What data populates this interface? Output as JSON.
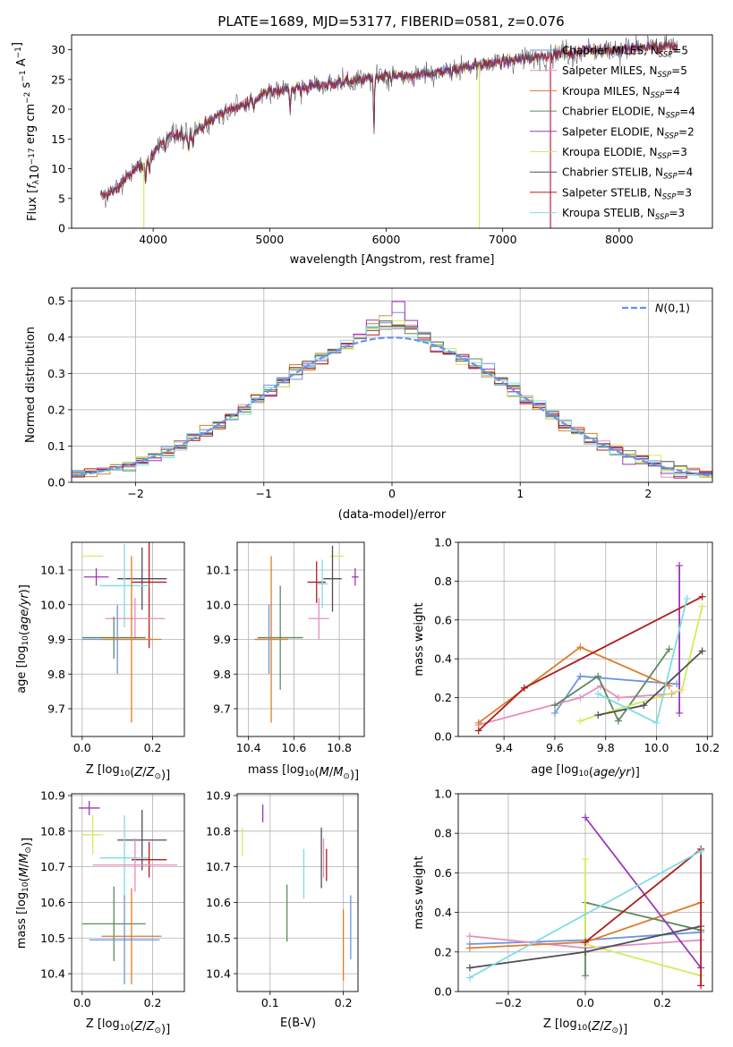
{
  "title": "PLATE=1689, MJD=53177, FIBERID=0581, z=0.076",
  "colors": {
    "Chabrier MILES": "#6e93e0",
    "Salpeter MILES": "#e48fbd",
    "Kroupa MILES": "#dd7d2a",
    "Chabrier ELODIE": "#5d8a5f",
    "Salpeter ELODIE": "#9a38b8",
    "Kroupa ELODIE": "#d2ec5c",
    "Chabrier STELIB": "#4e4e58",
    "Salpeter STELIB": "#b01d1d",
    "Kroupa STELIB": "#7fdde2",
    "normal": "#6495ed",
    "grid": "#b0b0b0"
  },
  "chart_data": [
    {
      "id": "spectrum",
      "type": "line",
      "title": "PLATE=1689, MJD=53177, FIBERID=0581, z=0.076",
      "xlabel": "wavelength [Angstrom, rest frame]",
      "ylabel": "Flux [f_λ 10^-17 erg cm^-2 s^-1 A^-1]",
      "xlim": [
        3300,
        8800
      ],
      "ylim": [
        0,
        32.5
      ],
      "xticks": [
        4000,
        5000,
        6000,
        7000,
        8000
      ],
      "yticks": [
        0,
        5,
        10,
        15,
        20,
        25,
        30
      ],
      "legend": {
        "placement": "right",
        "entries": [
          {
            "label": "Chabrier MILES, N_SSP=5",
            "prefix": "Chabrier MILES, N",
            "sub": "SSP",
            "suffix": "=5"
          },
          {
            "label": "Salpeter MILES, N_SSP=5",
            "prefix": "Salpeter MILES, N",
            "sub": "SSP",
            "suffix": "=5"
          },
          {
            "label": "Kroupa MILES, N_SSP=4",
            "prefix": "Kroupa MILES, N",
            "sub": "SSP",
            "suffix": "=4"
          },
          {
            "label": "Chabrier ELODIE, N_SSP=4",
            "prefix": "Chabrier ELODIE, N",
            "sub": "SSP",
            "suffix": "=4"
          },
          {
            "label": "Salpeter ELODIE, N_SSP=2",
            "prefix": "Salpeter ELODIE, N",
            "sub": "SSP",
            "suffix": "=2"
          },
          {
            "label": "Kroupa ELODIE, N_SSP=3",
            "prefix": "Kroupa ELODIE, N",
            "sub": "SSP",
            "suffix": "=3"
          },
          {
            "label": "Chabrier STELIB, N_SSP=4",
            "prefix": "Chabrier STELIB, N",
            "sub": "SSP",
            "suffix": "=4"
          },
          {
            "label": "Salpeter STELIB, N_SSP=3",
            "prefix": "Salpeter STELIB, N",
            "sub": "SSP",
            "suffix": "=3"
          },
          {
            "label": "Kroupa STELIB, N_SSP=3",
            "prefix": "Kroupa STELIB, N",
            "sub": "SSP",
            "suffix": "=3"
          }
        ]
      },
      "continuum": [
        [
          3550,
          5.5
        ],
        [
          3650,
          6
        ],
        [
          3750,
          8
        ],
        [
          3850,
          10
        ],
        [
          3950,
          11
        ],
        [
          4050,
          14
        ],
        [
          4150,
          15.5
        ],
        [
          4300,
          15.5
        ],
        [
          4450,
          17.5
        ],
        [
          4600,
          19.5
        ],
        [
          4800,
          21
        ],
        [
          5000,
          23
        ],
        [
          5200,
          23.5
        ],
        [
          5400,
          24
        ],
        [
          5600,
          24.5
        ],
        [
          5800,
          25
        ],
        [
          6000,
          25.5
        ],
        [
          6200,
          25.5
        ],
        [
          6500,
          26.5
        ],
        [
          6800,
          27.5
        ],
        [
          7000,
          28
        ],
        [
          7200,
          28.5
        ],
        [
          7500,
          29.5
        ],
        [
          7800,
          30
        ],
        [
          8000,
          30
        ],
        [
          8300,
          30.5
        ],
        [
          8500,
          30.5
        ]
      ],
      "absorption": [
        [
          3934,
          2.5
        ],
        [
          3969,
          2.5
        ],
        [
          4102,
          2
        ],
        [
          4304,
          2.5
        ],
        [
          4340,
          2
        ],
        [
          4861,
          2
        ],
        [
          5175,
          4
        ],
        [
          5270,
          1.5
        ],
        [
          5895,
          9
        ],
        [
          6563,
          1.5
        ],
        [
          7600,
          1.5
        ]
      ],
      "spikes": [
        [
          6800,
          "Kroupa ELODIE"
        ],
        [
          7410,
          "Salpeter STELIB"
        ],
        [
          7405,
          "Salpeter MILES"
        ],
        [
          3920,
          "Kroupa ELODIE"
        ]
      ]
    },
    {
      "id": "residuals",
      "type": "bar",
      "xlabel": "(data-model)/error",
      "ylabel": "Normed distribution",
      "xlim": [
        -2.5,
        2.5
      ],
      "ylim": [
        0,
        0.535
      ],
      "xticks": [
        -2,
        -1,
        0,
        1,
        2
      ],
      "yticks": [
        0.0,
        0.1,
        0.2,
        0.3,
        0.4,
        0.5
      ],
      "bin_width": 0.1,
      "legend": {
        "label": "N(0,1)",
        "placement": "top-right"
      },
      "peaks": {
        "Chabrier MILES": 0.49,
        "Salpeter MILES": 0.45,
        "Kroupa MILES": 0.47,
        "Chabrier ELODIE": 0.44,
        "Salpeter ELODIE": 0.51,
        "Kroupa ELODIE": 0.47,
        "Chabrier STELIB": 0.46,
        "Salpeter STELIB": 0.45,
        "Kroupa STELIB": 0.44
      }
    },
    {
      "id": "age-vs-metal",
      "type": "scatter",
      "xlabel": "Z [log10(Z/Z☉)]",
      "ylabel": "age [log10(age/yr)]",
      "xlim": [
        -0.03,
        0.29
      ],
      "ylim": [
        9.62,
        10.18
      ],
      "xticks": [
        0.0,
        0.2
      ],
      "yticks": [
        9.7,
        9.8,
        9.9,
        10.0,
        10.1
      ],
      "points": [
        {
          "s": "Kroupa ELODIE",
          "x": 0.03,
          "y": 10.14,
          "xe": 0.03,
          "ye": 0.0
        },
        {
          "s": "Salpeter ELODIE",
          "x": 0.04,
          "y": 10.08,
          "xe": 0.035,
          "ye": 0.025
        },
        {
          "s": "Chabrier STELIB",
          "x": 0.17,
          "y": 10.075,
          "xe": 0.07,
          "ye": 0.09
        },
        {
          "s": "Salpeter STELIB",
          "x": 0.19,
          "y": 10.065,
          "xe": 0.05,
          "ye": 0.19
        },
        {
          "s": "Kroupa STELIB",
          "x": 0.12,
          "y": 10.055,
          "xe": 0.07,
          "ye": 0.12
        },
        {
          "s": "Salpeter MILES",
          "x": 0.15,
          "y": 9.96,
          "xe": 0.085,
          "ye": 0.06
        },
        {
          "s": "Chabrier ELODIE",
          "x": 0.09,
          "y": 9.905,
          "xe": 0.09,
          "ye": 0.06
        },
        {
          "s": "Chabrier MILES",
          "x": 0.1,
          "y": 9.9,
          "xe": 0.1,
          "ye": 0.1
        },
        {
          "s": "Kroupa MILES",
          "x": 0.14,
          "y": 9.9,
          "xe": 0.085,
          "ye": 0.24
        }
      ]
    },
    {
      "id": "age-vs-mass",
      "type": "scatter",
      "xlabel": "mass [log10(M/M☉)]",
      "ylabel": "",
      "xlim": [
        10.35,
        10.91
      ],
      "ylim": [
        9.62,
        10.18
      ],
      "xticks": [
        10.4,
        10.6,
        10.8
      ],
      "yticks": [
        9.7,
        9.8,
        9.9,
        10.0,
        10.1
      ],
      "points": [
        {
          "s": "Kroupa ELODIE",
          "x": 10.79,
          "y": 10.14,
          "xe": 0.03,
          "ye": 0.0
        },
        {
          "s": "Salpeter ELODIE",
          "x": 10.87,
          "y": 10.08,
          "xe": 0.015,
          "ye": 0.025
        },
        {
          "s": "Chabrier STELIB",
          "x": 10.77,
          "y": 10.075,
          "xe": 0.04,
          "ye": 0.095
        },
        {
          "s": "Salpeter STELIB",
          "x": 10.7,
          "y": 10.065,
          "xe": 0.04,
          "ye": 0.06
        },
        {
          "s": "Kroupa STELIB",
          "x": 10.725,
          "y": 10.06,
          "xe": 0.025,
          "ye": 0.07
        },
        {
          "s": "Salpeter MILES",
          "x": 10.71,
          "y": 9.96,
          "xe": 0.045,
          "ye": 0.06
        },
        {
          "s": "Chabrier ELODIE",
          "x": 10.54,
          "y": 9.905,
          "xe": 0.1,
          "ye": 0.15
        },
        {
          "s": "Chabrier MILES",
          "x": 10.49,
          "y": 9.9,
          "xe": 0.06,
          "ye": 0.1
        },
        {
          "s": "Kroupa MILES",
          "x": 10.5,
          "y": 9.9,
          "xe": 0.075,
          "ye": 0.24
        }
      ]
    },
    {
      "id": "mass-weight-vs-age",
      "type": "line",
      "xlabel": "age [log10(age/yr)]",
      "ylabel": "mass weight",
      "xlim": [
        9.22,
        10.22
      ],
      "ylim": [
        0,
        1
      ],
      "xticks": [
        9.4,
        9.6,
        9.8,
        10.0,
        10.2
      ],
      "yticks": [
        0.0,
        0.2,
        0.4,
        0.6,
        0.8,
        1.0
      ],
      "series": [
        {
          "s": "Chabrier MILES",
          "x": [
            9.6,
            9.7,
            10.08
          ],
          "y": [
            0.12,
            0.31,
            0.27
          ]
        },
        {
          "s": "Salpeter MILES",
          "x": [
            9.3,
            9.7,
            9.78,
            9.85,
            10.06
          ],
          "y": [
            0.06,
            0.2,
            0.26,
            0.2,
            0.22
          ]
        },
        {
          "s": "Kroupa MILES",
          "x": [
            9.3,
            9.7,
            10.05
          ],
          "y": [
            0.07,
            0.46,
            0.26
          ]
        },
        {
          "s": "Chabrier ELODIE",
          "x": [
            9.6,
            9.77,
            9.85,
            10.05
          ],
          "y": [
            0.16,
            0.31,
            0.08,
            0.45
          ]
        },
        {
          "s": "Salpeter ELODIE",
          "x": [
            10.09,
            10.09
          ],
          "y": [
            0.12,
            0.88
          ]
        },
        {
          "s": "Kroupa ELODIE",
          "x": [
            9.7,
            9.77,
            10.1,
            10.18
          ],
          "y": [
            0.08,
            0.11,
            0.24,
            0.67
          ]
        },
        {
          "s": "Chabrier STELIB",
          "x": [
            9.77,
            9.95,
            10.18
          ],
          "y": [
            0.11,
            0.16,
            0.44
          ]
        },
        {
          "s": "Salpeter STELIB",
          "x": [
            9.3,
            9.48,
            10.18
          ],
          "y": [
            0.03,
            0.25,
            0.72
          ]
        },
        {
          "s": "Kroupa STELIB",
          "x": [
            9.77,
            10.0,
            10.12
          ],
          "y": [
            0.22,
            0.07,
            0.71
          ]
        }
      ],
      "errbar": {
        "s": "Salpeter ELODIE",
        "x": 10.09,
        "y": 0.88,
        "lo": 0.12
      }
    },
    {
      "id": "mass-vs-metal",
      "type": "scatter",
      "xlabel": "Z [log10(Z/Z☉)]",
      "ylabel": "mass [log10(M/M☉)]",
      "xlim": [
        -0.03,
        0.29
      ],
      "ylim": [
        10.35,
        10.905
      ],
      "xticks": [
        0.0,
        0.2
      ],
      "yticks": [
        10.4,
        10.5,
        10.6,
        10.7,
        10.8,
        10.9
      ],
      "points": [
        {
          "s": "Salpeter ELODIE",
          "x": 0.02,
          "y": 10.865,
          "xe": 0.03,
          "ye": 0.02
        },
        {
          "s": "Kroupa ELODIE",
          "x": 0.03,
          "y": 10.79,
          "xe": 0.03,
          "ye": 0.055
        },
        {
          "s": "Chabrier STELIB",
          "x": 0.17,
          "y": 10.775,
          "xe": 0.07,
          "ye": 0.085
        },
        {
          "s": "Kroupa STELIB",
          "x": 0.12,
          "y": 10.725,
          "xe": 0.07,
          "ye": 0.12
        },
        {
          "s": "Salpeter STELIB",
          "x": 0.19,
          "y": 10.72,
          "xe": 0.05,
          "ye": 0.05
        },
        {
          "s": "Salpeter MILES",
          "x": 0.15,
          "y": 10.705,
          "xe": 0.12,
          "ye": 0.075
        },
        {
          "s": "Chabrier ELODIE",
          "x": 0.09,
          "y": 10.54,
          "xe": 0.09,
          "ye": 0.105
        },
        {
          "s": "Kroupa MILES",
          "x": 0.14,
          "y": 10.505,
          "xe": 0.085,
          "ye": 0.135
        },
        {
          "s": "Chabrier MILES",
          "x": 0.12,
          "y": 10.495,
          "xe": 0.1,
          "ye": 0.125
        }
      ]
    },
    {
      "id": "mass-vs-ebv",
      "type": "scatter",
      "xlabel": "E(B-V)",
      "ylabel": "",
      "xlim": [
        0.055,
        0.22
      ],
      "ylim": [
        10.35,
        10.905
      ],
      "xticks": [
        0.1,
        0.2
      ],
      "yticks": [
        10.4,
        10.5,
        10.6,
        10.7,
        10.8,
        10.9
      ],
      "points": [
        {
          "s": "Salpeter ELODIE",
          "x": 0.09,
          "y": 10.85,
          "xe": 0,
          "ye": 0.025
        },
        {
          "s": "Kroupa ELODIE",
          "x": 0.062,
          "y": 10.77,
          "xe": 0,
          "ye": 0.04
        },
        {
          "s": "Chabrier STELIB",
          "x": 0.17,
          "y": 10.725,
          "xe": 0,
          "ye": 0.085
        },
        {
          "s": "Salpeter MILES",
          "x": 0.173,
          "y": 10.725,
          "xe": 0,
          "ye": 0.055
        },
        {
          "s": "Salpeter STELIB",
          "x": 0.177,
          "y": 10.705,
          "xe": 0,
          "ye": 0.045
        },
        {
          "s": "Kroupa STELIB",
          "x": 0.146,
          "y": 10.68,
          "xe": 0,
          "ye": 0.07
        },
        {
          "s": "Chabrier ELODIE",
          "x": 0.123,
          "y": 10.57,
          "xe": 0,
          "ye": 0.08
        },
        {
          "s": "Kroupa MILES",
          "x": 0.2,
          "y": 10.48,
          "xe": 0,
          "ye": 0.1
        },
        {
          "s": "Chabrier MILES",
          "x": 0.21,
          "y": 10.53,
          "xe": 0,
          "ye": 0.09
        }
      ]
    },
    {
      "id": "mass-weight-vs-metal",
      "type": "line",
      "xlabel": "Z [log10(Z/Z☉)]",
      "ylabel": "mass weight",
      "xlim": [
        -0.33,
        0.33
      ],
      "ylim": [
        0,
        1
      ],
      "xticks": [
        -0.2,
        0.0,
        0.2
      ],
      "yticks": [
        0.0,
        0.2,
        0.4,
        0.6,
        0.8,
        1.0
      ],
      "series": [
        {
          "s": "Chabrier MILES",
          "x": [
            -0.3,
            0.0,
            0.3
          ],
          "y": [
            0.24,
            0.26,
            0.3
          ]
        },
        {
          "s": "Salpeter MILES",
          "x": [
            -0.3,
            0.0,
            0.3
          ],
          "y": [
            0.28,
            0.22,
            0.26
          ]
        },
        {
          "s": "Kroupa MILES",
          "x": [
            -0.3,
            0.0,
            0.3
          ],
          "y": [
            0.22,
            0.25,
            0.45
          ]
        },
        {
          "s": "Chabrier ELODIE",
          "x": [
            0.0,
            0.0,
            0.3
          ],
          "y": [
            0.08,
            0.45,
            0.31
          ]
        },
        {
          "s": "Salpeter ELODIE",
          "x": [
            0.0,
            0.3
          ],
          "y": [
            0.88,
            0.12
          ]
        },
        {
          "s": "Kroupa ELODIE",
          "x": [
            0.0,
            0.0,
            0.3
          ],
          "y": [
            0.67,
            0.24,
            0.08
          ]
        },
        {
          "s": "Chabrier STELIB",
          "x": [
            -0.3,
            0.0,
            0.3
          ],
          "y": [
            0.12,
            0.2,
            0.33
          ]
        },
        {
          "s": "Salpeter STELIB",
          "x": [
            0.0,
            0.3,
            0.3
          ],
          "y": [
            0.25,
            0.72,
            0.03
          ]
        },
        {
          "s": "Kroupa STELIB",
          "x": [
            -0.3,
            0.3
          ],
          "y": [
            0.07,
            0.71
          ]
        }
      ]
    }
  ]
}
